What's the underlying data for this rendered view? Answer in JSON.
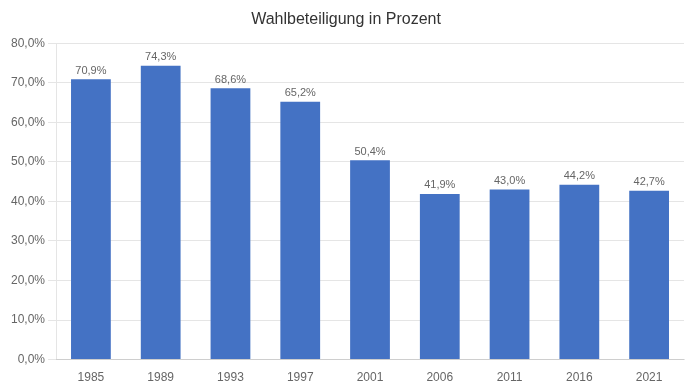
{
  "chart_data": {
    "type": "bar",
    "title": "Wahlbeteiligung in Prozent",
    "categories": [
      "1985",
      "1989",
      "1993",
      "1997",
      "2001",
      "2006",
      "2011",
      "2016",
      "2021"
    ],
    "values": [
      70.9,
      74.3,
      68.6,
      65.2,
      50.4,
      41.9,
      43.0,
      44.2,
      42.7
    ],
    "value_labels": [
      "70,9%",
      "74,3%",
      "68,6%",
      "65,2%",
      "50,4%",
      "41,9%",
      "43,0%",
      "44,2%",
      "42,7%"
    ],
    "data_labels": true,
    "color": "#4472C4",
    "ylim": [
      0,
      80
    ],
    "yticks": [
      {
        "value": 0,
        "label": "0,0%"
      },
      {
        "value": 10,
        "label": "10,0%"
      },
      {
        "value": 20,
        "label": "20,0%"
      },
      {
        "value": 30,
        "label": "30,0%"
      },
      {
        "value": 40,
        "label": "40,0%"
      },
      {
        "value": 50,
        "label": "50,0%"
      },
      {
        "value": 60,
        "label": "60,0%"
      },
      {
        "value": 70,
        "label": "70,0%"
      },
      {
        "value": 80,
        "label": "80,0%"
      }
    ],
    "grid": true
  }
}
